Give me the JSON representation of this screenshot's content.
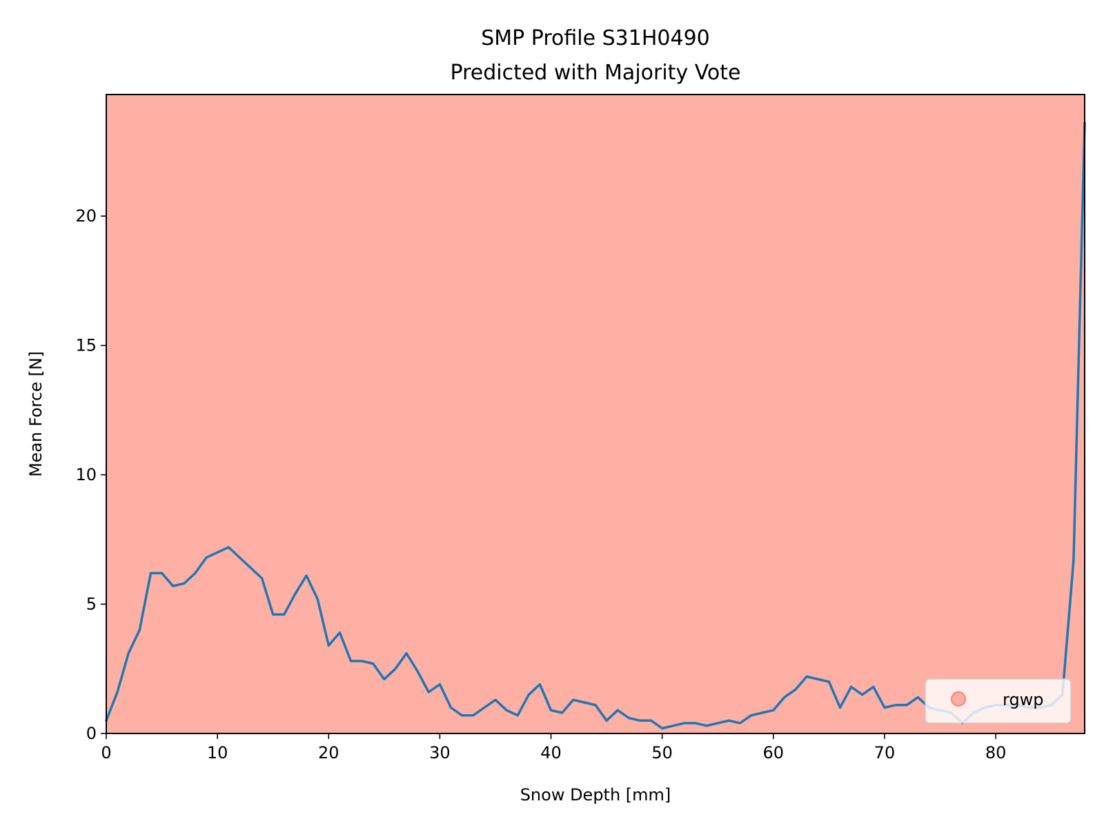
{
  "chart_data": {
    "type": "line",
    "title": "SMP Profile S31H0490",
    "subtitle": "Predicted with Majority Vote",
    "xlabel": "Snow Depth [mm]",
    "ylabel": "Mean Force [N]",
    "xlim": [
      0,
      88
    ],
    "ylim": [
      0,
      24.7
    ],
    "xticks": [
      0,
      10,
      20,
      30,
      40,
      50,
      60,
      70,
      80
    ],
    "yticks": [
      0,
      5,
      10,
      15,
      20
    ],
    "grid": false,
    "legend": {
      "location": "lower-right",
      "entries": [
        {
          "label": "rgwp",
          "color": "#fa8072"
        }
      ]
    },
    "background_regions": [
      {
        "label": "rgwp",
        "x0": 0,
        "x1": 88,
        "color": "#ffb0a5"
      }
    ],
    "series": [
      {
        "color": "#1f77b4",
        "x": [
          0,
          1,
          2,
          3,
          4,
          5,
          6,
          7,
          8,
          9,
          10,
          11,
          12,
          13,
          14,
          15,
          16,
          17,
          18,
          19,
          20,
          21,
          22,
          23,
          24,
          25,
          26,
          27,
          28,
          29,
          30,
          31,
          32,
          33,
          34,
          35,
          36,
          37,
          38,
          39,
          40,
          41,
          42,
          43,
          44,
          45,
          46,
          47,
          48,
          49,
          50,
          51,
          52,
          53,
          54,
          55,
          56,
          57,
          58,
          59,
          60,
          61,
          62,
          63,
          64,
          65,
          66,
          67,
          68,
          69,
          70,
          71,
          72,
          73,
          74,
          75,
          76,
          77,
          78,
          79,
          80,
          81,
          82,
          83,
          84,
          85,
          86,
          87,
          88
        ],
        "values": [
          0.5,
          1.6,
          3.1,
          4.0,
          6.2,
          6.2,
          5.7,
          5.8,
          6.2,
          6.8,
          7.0,
          7.2,
          6.8,
          6.4,
          6.0,
          4.6,
          4.6,
          5.4,
          6.1,
          5.2,
          3.4,
          3.9,
          2.8,
          2.8,
          2.7,
          2.1,
          2.5,
          3.1,
          2.4,
          1.6,
          1.9,
          1.0,
          0.7,
          0.7,
          1.0,
          1.3,
          0.9,
          0.7,
          1.5,
          1.9,
          0.9,
          0.8,
          1.3,
          1.2,
          1.1,
          0.5,
          0.9,
          0.6,
          0.5,
          0.5,
          0.2,
          0.3,
          0.4,
          0.4,
          0.3,
          0.4,
          0.5,
          0.4,
          0.7,
          0.8,
          0.9,
          1.4,
          1.7,
          2.2,
          2.1,
          2.0,
          1.0,
          1.8,
          1.5,
          1.8,
          1.0,
          1.1,
          1.1,
          1.4,
          1.0,
          0.9,
          0.8,
          0.4,
          0.8,
          1.0,
          1.1,
          1.1,
          1.1,
          1.0,
          1.0,
          1.1,
          1.5,
          6.7,
          23.6
        ]
      }
    ]
  }
}
